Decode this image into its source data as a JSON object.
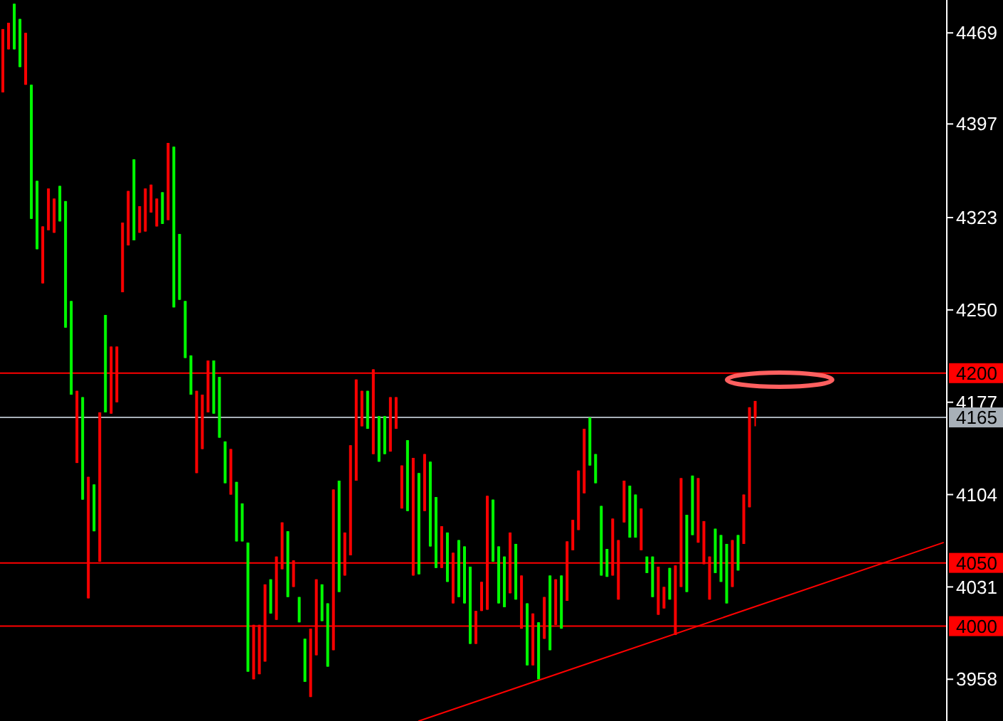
{
  "chart_data": {
    "type": "candlestick",
    "categories": [
      null,
      null,
      null,
      null,
      null,
      null,
      null,
      null,
      null,
      null,
      null,
      null,
      null,
      null,
      null,
      null,
      null,
      null,
      null,
      null,
      null,
      null,
      null,
      null,
      null,
      null,
      null,
      null,
      null,
      null,
      null,
      null,
      null,
      null,
      null,
      null,
      null,
      null,
      null,
      null,
      null,
      null,
      null,
      null,
      null,
      null,
      null,
      null,
      null,
      null,
      null,
      null,
      null,
      null,
      null,
      null,
      null,
      null,
      null,
      null,
      null,
      null,
      null,
      null,
      null,
      null,
      null,
      null,
      null,
      null,
      null,
      null,
      null,
      null,
      null,
      null,
      null,
      null,
      null,
      null,
      null,
      null,
      null,
      null,
      null,
      null,
      null,
      null,
      null,
      null,
      null,
      null,
      null,
      null,
      null,
      null,
      null,
      null,
      null,
      null,
      null,
      null,
      null,
      null,
      null,
      null,
      null,
      null,
      null,
      null,
      null,
      null,
      null,
      null,
      null,
      null,
      null,
      null,
      null,
      null,
      null,
      null,
      null,
      null,
      null,
      null,
      null,
      null,
      null,
      null,
      null,
      null,
      null,
      null,
      null,
      null,
      null,
      null,
      null,
      null,
      null,
      null,
      null,
      null,
      null,
      null,
      null,
      null,
      null,
      null,
      null,
      null,
      null,
      null,
      null,
      null,
      null,
      null,
      null,
      null,
      null,
      null,
      null,
      null,
      null,
      null
    ],
    "ohlc": [
      [
        4472,
        4472,
        4422,
        4422
      ],
      [
        4477,
        4477,
        4456,
        4456
      ],
      [
        4456,
        4492,
        4456,
        4492
      ],
      [
        4442,
        4480,
        4442,
        4480
      ],
      [
        4469,
        4469,
        4428,
        4428
      ],
      [
        4322,
        4428,
        4322,
        4428
      ],
      [
        4298,
        4352,
        4298,
        4352
      ],
      [
        4316,
        4316,
        4271,
        4271
      ],
      [
        4346,
        4346,
        4313,
        4313
      ],
      [
        4338,
        4338,
        4311,
        4311
      ],
      [
        4320,
        4348,
        4320,
        4348
      ],
      [
        4236,
        4336,
        4236,
        4336
      ],
      [
        4183,
        4257,
        4183,
        4257
      ],
      [
        4186,
        4186,
        4129,
        4129
      ],
      [
        4100,
        4181,
        4100,
        4181
      ],
      [
        4118,
        4118,
        4022,
        4022
      ],
      [
        4075,
        4112,
        4075,
        4112
      ],
      [
        4169,
        4169,
        4051,
        4051
      ],
      [
        4169,
        4246,
        4169,
        4246
      ],
      [
        4221,
        4221,
        4168,
        4168
      ],
      [
        4221,
        4221,
        4177,
        4177
      ],
      [
        4319,
        4319,
        4264,
        4264
      ],
      [
        4344,
        4344,
        4301,
        4301
      ],
      [
        4305,
        4369,
        4305,
        4369
      ],
      [
        4332,
        4332,
        4311,
        4311
      ],
      [
        4346,
        4346,
        4312,
        4312
      ],
      [
        4349,
        4349,
        4327,
        4327
      ],
      [
        4338,
        4338,
        4316,
        4316
      ],
      [
        4318,
        4343,
        4318,
        4343
      ],
      [
        4382,
        4382,
        4321,
        4321
      ],
      [
        4252,
        4379,
        4252,
        4379
      ],
      [
        4258,
        4310,
        4258,
        4310
      ],
      [
        4212,
        4257,
        4212,
        4257
      ],
      [
        4183,
        4214,
        4183,
        4214
      ],
      [
        4186,
        4186,
        4121,
        4121
      ],
      [
        4183,
        4183,
        4140,
        4140
      ],
      [
        4210,
        4210,
        4169,
        4169
      ],
      [
        4168,
        4210,
        4168,
        4210
      ],
      [
        4149,
        4197,
        4149,
        4197
      ],
      [
        4113,
        4146,
        4113,
        4146
      ],
      [
        4140,
        4140,
        4104,
        4104
      ],
      [
        4067,
        4114,
        4067,
        4114
      ],
      [
        4067,
        4097,
        4067,
        4097
      ],
      [
        3964,
        4066,
        3964,
        4066
      ],
      [
        4001,
        4001,
        3958,
        3958
      ],
      [
        4001,
        4001,
        3962,
        3962
      ],
      [
        4033,
        4033,
        3972,
        3972
      ],
      [
        4010,
        4037,
        4010,
        4037
      ],
      [
        4055,
        4055,
        4005,
        4005
      ],
      [
        4082,
        4082,
        4045,
        4045
      ],
      [
        4023,
        4075,
        4023,
        4075
      ],
      [
        4052,
        4052,
        4031,
        4031
      ],
      [
        4003,
        4023,
        4003,
        4023
      ],
      [
        3956,
        3990,
        3956,
        3990
      ],
      [
        3998,
        3998,
        3944,
        3944
      ],
      [
        4037,
        4037,
        3977,
        3977
      ],
      [
        4004,
        4033,
        4004,
        4033
      ],
      [
        3968,
        4018,
        3968,
        4018
      ],
      [
        4108,
        4108,
        3981,
        3981
      ],
      [
        4027,
        4115,
        4027,
        4115
      ],
      [
        4074,
        4074,
        4040,
        4040
      ],
      [
        4143,
        4143,
        4056,
        4056
      ],
      [
        4195,
        4195,
        4115,
        4115
      ],
      [
        4186,
        4186,
        4158,
        4158
      ],
      [
        4156,
        4186,
        4156,
        4186
      ],
      [
        4203,
        4203,
        4136,
        4136
      ],
      [
        4130,
        4166,
        4130,
        4166
      ],
      [
        4136,
        4166,
        4136,
        4166
      ],
      [
        4181,
        4181,
        4138,
        4138
      ],
      [
        4181,
        4181,
        4156,
        4156
      ],
      [
        4127,
        4127,
        4093,
        4093
      ],
      [
        4091,
        4147,
        4091,
        4147
      ],
      [
        4133,
        4133,
        4040,
        4040
      ],
      [
        4041,
        4121,
        4041,
        4121
      ],
      [
        4136,
        4136,
        4091,
        4091
      ],
      [
        4063,
        4130,
        4063,
        4130
      ],
      [
        4046,
        4102,
        4046,
        4102
      ],
      [
        4079,
        4079,
        4046,
        4046
      ],
      [
        4035,
        4074,
        4035,
        4074
      ],
      [
        4058,
        4058,
        4018,
        4018
      ],
      [
        4023,
        4068,
        4023,
        4068
      ],
      [
        4018,
        4063,
        4018,
        4063
      ],
      [
        3986,
        4047,
        3986,
        4047
      ],
      [
        4012,
        4012,
        3986,
        3986
      ],
      [
        4035,
        4035,
        4012,
        4012
      ],
      [
        4103,
        4103,
        4013,
        4013
      ],
      [
        4051,
        4100,
        4051,
        4100
      ],
      [
        4018,
        4063,
        4018,
        4063
      ],
      [
        4015,
        4055,
        4015,
        4055
      ],
      [
        4074,
        4074,
        4026,
        4026
      ],
      [
        4021,
        4065,
        4021,
        4065
      ],
      [
        4040,
        4040,
        3998,
        3998
      ],
      [
        3969,
        4018,
        3969,
        4018
      ],
      [
        4010,
        4010,
        3969,
        3969
      ],
      [
        3958,
        4003,
        3958,
        4003
      ],
      [
        4023,
        4023,
        3990,
        3990
      ],
      [
        3981,
        4040,
        3981,
        4040
      ],
      [
        4037,
        4037,
        4001,
        4001
      ],
      [
        3998,
        4040,
        3998,
        4040
      ],
      [
        4067,
        4067,
        4020,
        4020
      ],
      [
        4084,
        4084,
        4060,
        4060
      ],
      [
        4123,
        4123,
        4076,
        4076
      ],
      [
        4156,
        4156,
        4105,
        4105
      ],
      [
        4127,
        4165,
        4127,
        4165
      ],
      [
        4113,
        4136,
        4113,
        4136
      ],
      [
        4040,
        4095,
        4040,
        4095
      ],
      [
        4039,
        4061,
        4039,
        4061
      ],
      [
        4085,
        4085,
        4040,
        4040
      ],
      [
        4068,
        4068,
        4021,
        4021
      ],
      [
        4115,
        4115,
        4082,
        4082
      ],
      [
        4070,
        4111,
        4070,
        4111
      ],
      [
        4070,
        4104,
        4070,
        4104
      ],
      [
        4093,
        4093,
        4060,
        4060
      ],
      [
        4042,
        4055,
        4042,
        4055
      ],
      [
        4023,
        4055,
        4023,
        4055
      ],
      [
        4047,
        4047,
        4009,
        4009
      ],
      [
        4031,
        4031,
        4014,
        4014
      ],
      [
        4021,
        4046,
        4021,
        4046
      ],
      [
        4048,
        4048,
        3993,
        3993
      ],
      [
        4117,
        4117,
        4031,
        4031
      ],
      [
        4027,
        4088,
        4027,
        4088
      ],
      [
        4072,
        4119,
        4072,
        4119
      ],
      [
        4117,
        4117,
        4066,
        4066
      ],
      [
        4083,
        4083,
        4049,
        4049
      ],
      [
        4055,
        4055,
        4021,
        4021
      ],
      [
        4042,
        4077,
        4042,
        4077
      ],
      [
        4035,
        4072,
        4035,
        4072
      ],
      [
        4018,
        4065,
        4018,
        4065
      ],
      [
        4068,
        4068,
        4031,
        4031
      ],
      [
        4044,
        4072,
        4044,
        4072
      ],
      [
        4104,
        4104,
        4065,
        4065
      ],
      [
        4173,
        4173,
        4094,
        4094
      ],
      [
        4178,
        4178,
        4158,
        4165
      ],
      null,
      null,
      null,
      null,
      null,
      null,
      null,
      null,
      null,
      null,
      null,
      null,
      null,
      null,
      null,
      null,
      null,
      null,
      null,
      null,
      null,
      null,
      null,
      null,
      null,
      null,
      null,
      null,
      null,
      null,
      null,
      null,
      null
    ],
    "series": [
      {
        "type": "line",
        "color": "#ff0000",
        "values": [
          null,
          null,
          null,
          null,
          null,
          null,
          null,
          null,
          null,
          null,
          null,
          null,
          null,
          null,
          null,
          null,
          null,
          null,
          null,
          null,
          null,
          null,
          null,
          null,
          null,
          null,
          null,
          null,
          null,
          null,
          null,
          null,
          null,
          null,
          null,
          null,
          null,
          null,
          null,
          null,
          null,
          null,
          null,
          null,
          null,
          null,
          null,
          null,
          null,
          null,
          null,
          null,
          null,
          null,
          null,
          null,
          null,
          null,
          null,
          null,
          null,
          null,
          null,
          null,
          null,
          null,
          null,
          null,
          null,
          null,
          null,
          null,
          null,
          3925,
          null,
          null,
          null,
          null,
          null,
          null,
          null,
          null,
          null,
          null,
          null,
          null,
          null,
          null,
          null,
          null,
          null,
          null,
          null,
          null,
          null,
          null,
          null,
          null,
          null,
          null,
          null,
          null,
          null,
          null,
          null,
          null,
          null,
          null,
          null,
          null,
          null,
          null,
          null,
          null,
          null,
          null,
          null,
          null,
          null,
          null,
          null,
          null,
          null,
          null,
          null,
          null,
          null,
          null,
          null,
          null,
          null,
          null,
          null,
          null,
          null,
          null,
          null,
          null,
          null,
          null,
          null,
          null,
          null,
          null,
          null,
          null,
          null,
          null,
          null,
          null,
          null,
          null,
          null,
          null,
          null,
          null,
          null,
          null,
          null,
          null,
          null,
          null,
          null,
          null,
          null,
          4066
        ]
      }
    ],
    "ylim": [
      3925,
      4495
    ],
    "yticks": [
      4469,
      4397,
      4323,
      4250,
      4177,
      4104,
      4031,
      3958
    ],
    "tick_labels": "y",
    "ref_lines": [
      {
        "axis": "y",
        "value": 4200,
        "label": "4200",
        "color": "#ff0000"
      },
      {
        "axis": "y",
        "value": 4165,
        "label": "4165",
        "color": "#a8b0b8"
      },
      {
        "axis": "y",
        "value": 4050,
        "label": "4050",
        "color": "#ff0000"
      },
      {
        "axis": "y",
        "value": 4000,
        "label": "4000",
        "color": "#ff0000"
      }
    ]
  }
}
